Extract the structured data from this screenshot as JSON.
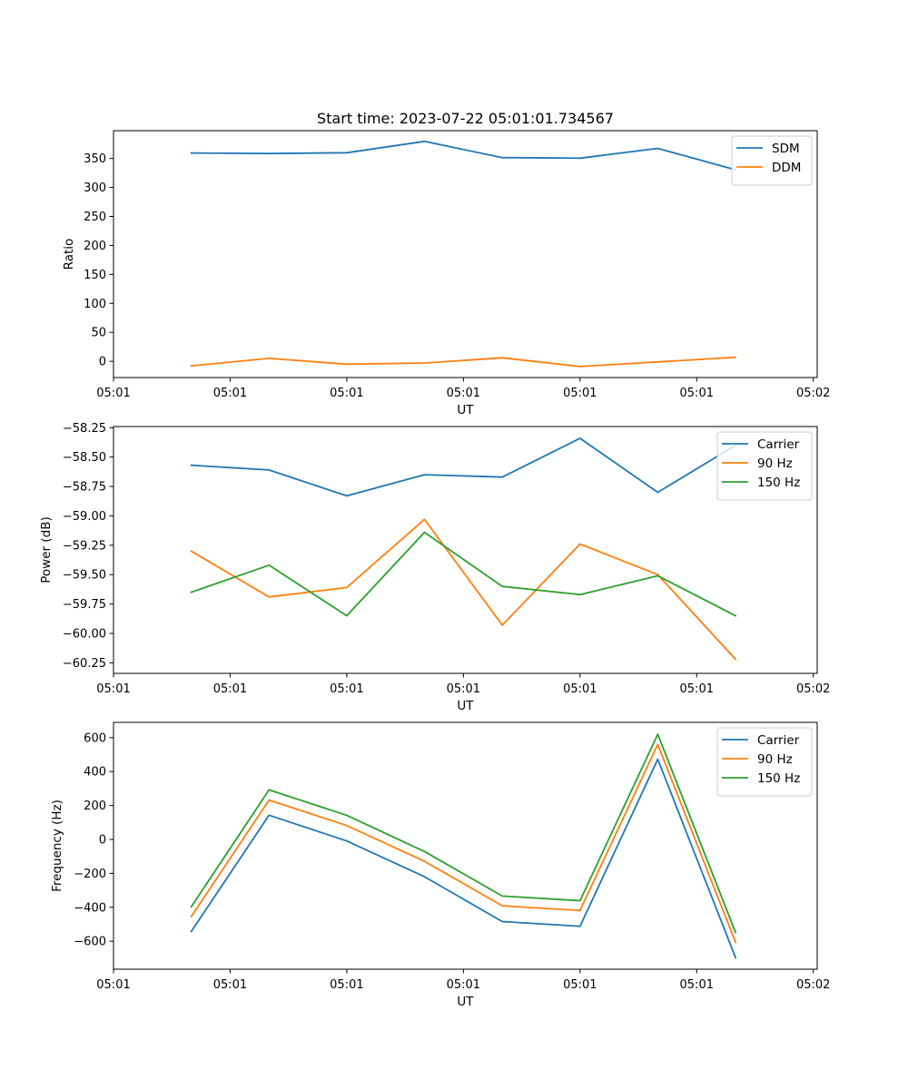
{
  "figure_title": "Start time: 2023-07-22 05:01:01.734567",
  "colors": {
    "blue": "#1f77b4",
    "orange": "#ff7f0e",
    "green": "#2ca02c"
  },
  "chart_data": [
    {
      "type": "line",
      "title": "Start time: 2023-07-22 05:01:01.734567",
      "xlabel": "UT",
      "ylabel": "Ratio",
      "x": [
        1,
        2,
        3,
        4,
        5,
        6,
        7,
        8
      ],
      "xlim": [
        0,
        9.05
      ],
      "xticks": [
        0,
        1.5,
        3,
        4.5,
        6,
        7.5,
        9
      ],
      "xtick_labels": [
        "05:01",
        "05:01",
        "05:01",
        "05:01",
        "05:01",
        "05:01",
        "05:02"
      ],
      "ylim": [
        -28,
        398
      ],
      "yticks": [
        0,
        50,
        100,
        150,
        200,
        250,
        300,
        350
      ],
      "ytick_labels": [
        "0",
        "50",
        "100",
        "150",
        "200",
        "250",
        "300",
        "350"
      ],
      "legend_position": "top-right",
      "series": [
        {
          "name": "SDM",
          "color": "#1f77b4",
          "values": [
            359.5,
            358.5,
            360,
            379.5,
            351.5,
            350.5,
            367.5,
            330.5
          ]
        },
        {
          "name": "DDM",
          "color": "#ff7f0e",
          "values": [
            -8,
            5,
            -5,
            -3,
            6,
            -9,
            -1,
            7
          ]
        }
      ]
    },
    {
      "type": "line",
      "title": "",
      "xlabel": "UT",
      "ylabel": "Power (dB)",
      "x": [
        1,
        2,
        3,
        4,
        5,
        6,
        7,
        8
      ],
      "xlim": [
        0,
        9.05
      ],
      "xticks": [
        0,
        1.5,
        3,
        4.5,
        6,
        7.5,
        9
      ],
      "xtick_labels": [
        "05:01",
        "05:01",
        "05:01",
        "05:01",
        "05:01",
        "05:01",
        "05:02"
      ],
      "ylim": [
        -60.34,
        -58.24
      ],
      "yticks": [
        -60.25,
        -60.0,
        -59.75,
        -59.5,
        -59.25,
        -59.0,
        -58.75,
        -58.5,
        -58.25
      ],
      "ytick_labels": [
        "−60.25",
        "−60.00",
        "−59.75",
        "−59.50",
        "−59.25",
        "−59.00",
        "−58.75",
        "−58.50",
        "−58.25"
      ],
      "legend_position": "top-right",
      "series": [
        {
          "name": "Carrier",
          "color": "#1f77b4",
          "values": [
            -58.57,
            -58.61,
            -58.83,
            -58.65,
            -58.67,
            -58.34,
            -58.8,
            -58.4
          ]
        },
        {
          "name": "90 Hz",
          "color": "#ff7f0e",
          "values": [
            -59.3,
            -59.69,
            -59.61,
            -59.03,
            -59.93,
            -59.24,
            -59.5,
            -60.22
          ]
        },
        {
          "name": "150 Hz",
          "color": "#2ca02c",
          "values": [
            -59.65,
            -59.42,
            -59.85,
            -59.14,
            -59.6,
            -59.67,
            -59.51,
            -59.85
          ]
        }
      ]
    },
    {
      "type": "line",
      "title": "",
      "xlabel": "UT",
      "ylabel": "Frequency (Hz)",
      "x": [
        1,
        2,
        3,
        4,
        5,
        6,
        7,
        8
      ],
      "xlim": [
        0,
        9.05
      ],
      "xticks": [
        0,
        1.5,
        3,
        4.5,
        6,
        7.5,
        9
      ],
      "xtick_labels": [
        "05:01",
        "05:01",
        "05:01",
        "05:01",
        "05:01",
        "05:01",
        "05:02"
      ],
      "ylim": [
        -765,
        690
      ],
      "yticks": [
        -600,
        -400,
        -200,
        0,
        200,
        400,
        600
      ],
      "ytick_labels": [
        "−600",
        "−400",
        "−200",
        "0",
        "200",
        "400",
        "600"
      ],
      "legend_position": "top-right",
      "series": [
        {
          "name": "Carrier",
          "color": "#1f77b4",
          "values": [
            -543,
            143,
            -9,
            -220,
            -484,
            -512,
            473,
            -697
          ]
        },
        {
          "name": "90 Hz",
          "color": "#ff7f0e",
          "values": [
            -455,
            232,
            82,
            -129,
            -391,
            -419,
            560,
            -606
          ]
        },
        {
          "name": "150 Hz",
          "color": "#2ca02c",
          "values": [
            -397,
            292,
            142,
            -71,
            -334,
            -361,
            620,
            -549
          ]
        }
      ]
    }
  ]
}
